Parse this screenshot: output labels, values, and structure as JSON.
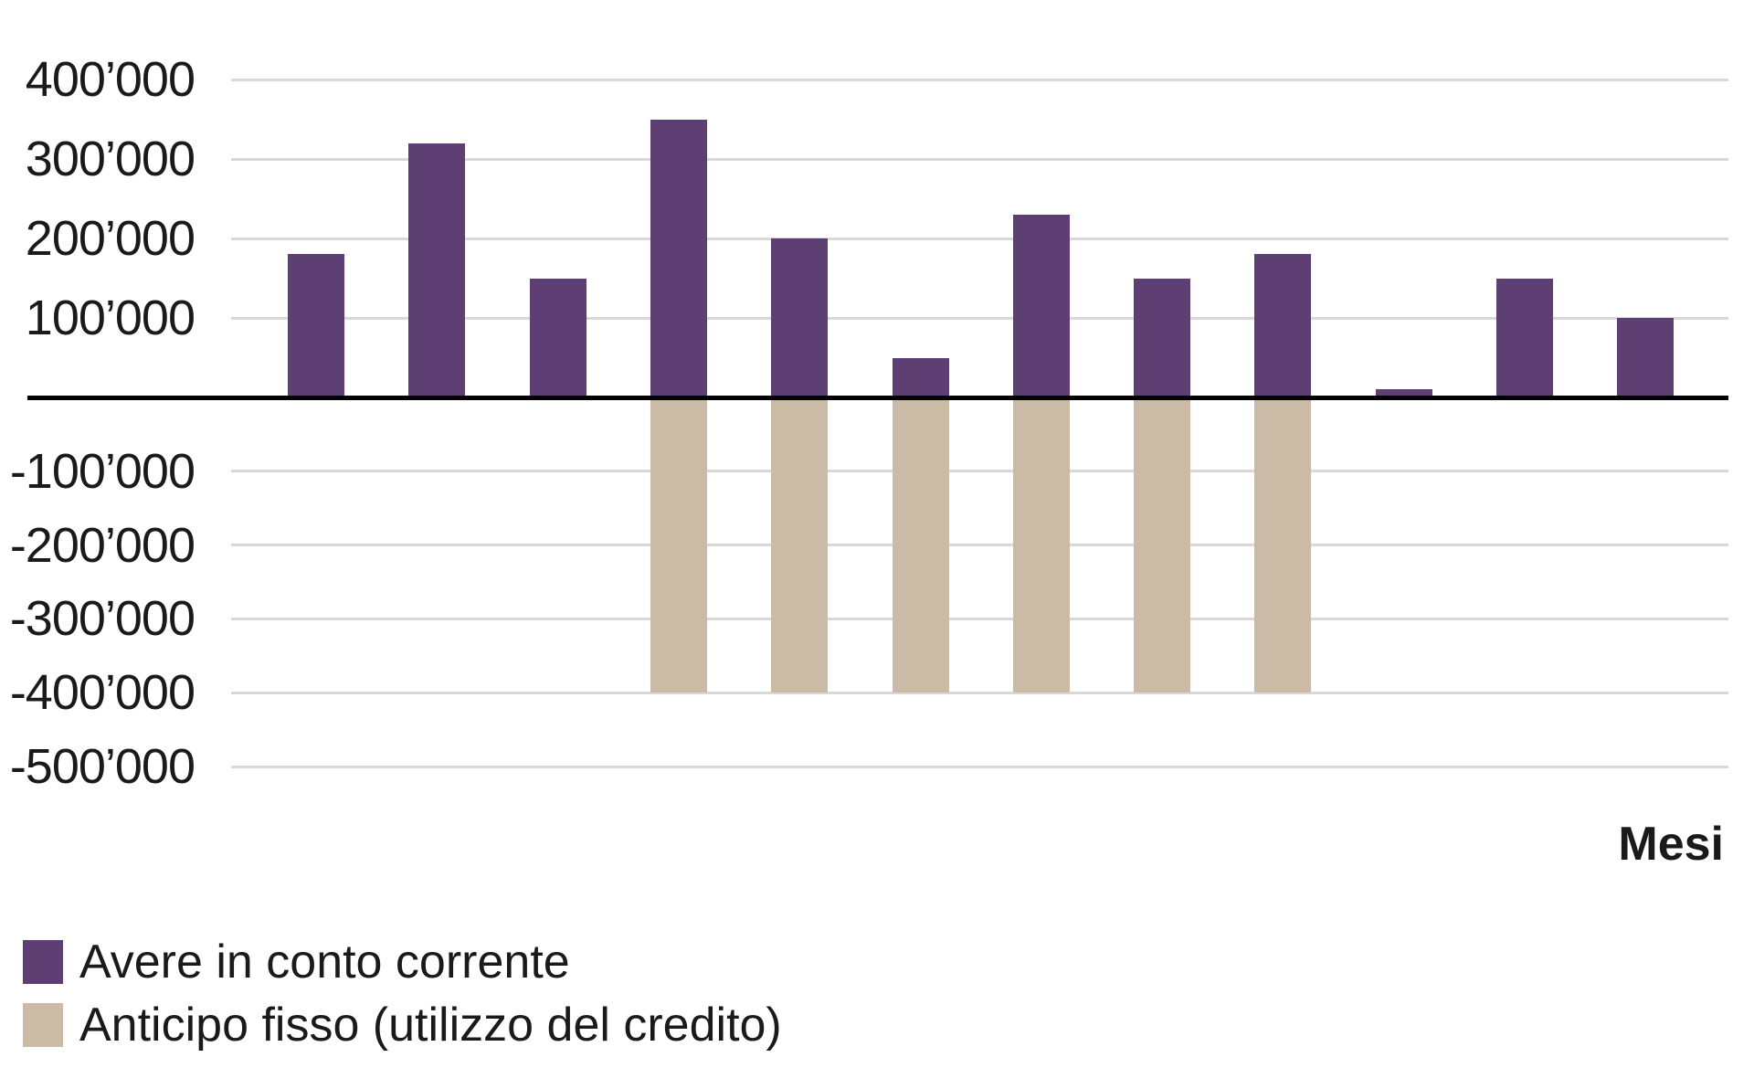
{
  "figure": {
    "background": "#ffffff"
  },
  "chart_data": {
    "type": "bar",
    "title": "",
    "xlabel": "Mesi",
    "ylabel": "",
    "ylim": [
      -500000,
      400000
    ],
    "grid": true,
    "zero_line": true,
    "legend_position": "bottom-left",
    "x_axis_note": "months not individually labeled",
    "y_ticks": [
      {
        "label": "400’000",
        "value": 400000
      },
      {
        "label": "300’000",
        "value": 300000
      },
      {
        "label": "200’000",
        "value": 200000
      },
      {
        "label": "100’000",
        "value": 100000
      },
      {
        "label": "-100’000",
        "value": -100000
      },
      {
        "label": "-200’000",
        "value": -200000
      },
      {
        "label": "-300’000",
        "value": -300000
      },
      {
        "label": "-400’000",
        "value": -400000
      },
      {
        "label": "-500’000",
        "value": -500000
      }
    ],
    "series": [
      {
        "name": "Avere in conto corrente",
        "color": "#5d3f73",
        "values": [
          180000,
          320000,
          150000,
          350000,
          200000,
          50000,
          230000,
          150000,
          180000,
          10000,
          150000,
          100000
        ]
      },
      {
        "name": "Anticipo fisso (utilizzo del credito)",
        "color": "#cbbaa5",
        "values": [
          0,
          0,
          0,
          -400000,
          -400000,
          -400000,
          -400000,
          -400000,
          -400000,
          0,
          0,
          0
        ]
      }
    ],
    "colors": {
      "gridline": "#d8d8d8",
      "zero_line": "#000000",
      "text": "#1a1a1a"
    }
  }
}
